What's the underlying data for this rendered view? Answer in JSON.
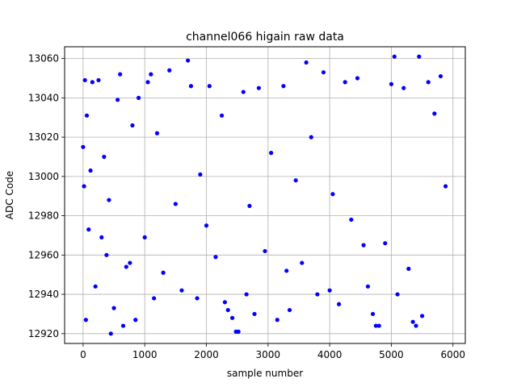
{
  "chart_data": {
    "type": "scatter",
    "title": "channel066 higain raw data",
    "xlabel": "sample number",
    "ylabel": "ADC Code",
    "xlim": [
      -300,
      6200
    ],
    "ylim": [
      12915,
      13066
    ],
    "xticks": [
      0,
      1000,
      2000,
      3000,
      4000,
      5000,
      6000
    ],
    "yticks": [
      12920,
      12940,
      12960,
      12980,
      13000,
      13020,
      13040,
      13060
    ],
    "xtick_labels": [
      "0",
      "1000",
      "2000",
      "3000",
      "4000",
      "5000",
      "6000"
    ],
    "ytick_labels": [
      "12920",
      "12940",
      "12960",
      "12980",
      "13000",
      "13020",
      "13040",
      "13060"
    ],
    "grid": true,
    "marker_color": "#0000ff",
    "series": [
      {
        "values": [
          {
            "x": 0,
            "y": 13015
          },
          {
            "x": 15,
            "y": 12995
          },
          {
            "x": 30,
            "y": 13049
          },
          {
            "x": 45,
            "y": 12927
          },
          {
            "x": 60,
            "y": 13031
          },
          {
            "x": 90,
            "y": 12973
          },
          {
            "x": 120,
            "y": 13003
          },
          {
            "x": 150,
            "y": 13048
          },
          {
            "x": 200,
            "y": 12944
          },
          {
            "x": 250,
            "y": 13049
          },
          {
            "x": 300,
            "y": 12969
          },
          {
            "x": 340,
            "y": 13010
          },
          {
            "x": 380,
            "y": 12960
          },
          {
            "x": 420,
            "y": 12988
          },
          {
            "x": 450,
            "y": 12920
          },
          {
            "x": 500,
            "y": 12933
          },
          {
            "x": 560,
            "y": 13039
          },
          {
            "x": 600,
            "y": 13052
          },
          {
            "x": 650,
            "y": 12924
          },
          {
            "x": 700,
            "y": 12954
          },
          {
            "x": 760,
            "y": 12956
          },
          {
            "x": 800,
            "y": 13026
          },
          {
            "x": 850,
            "y": 12927
          },
          {
            "x": 900,
            "y": 13040
          },
          {
            "x": 1000,
            "y": 12969
          },
          {
            "x": 1050,
            "y": 13048
          },
          {
            "x": 1100,
            "y": 13052
          },
          {
            "x": 1150,
            "y": 12938
          },
          {
            "x": 1200,
            "y": 13022
          },
          {
            "x": 1300,
            "y": 12951
          },
          {
            "x": 1400,
            "y": 13054
          },
          {
            "x": 1500,
            "y": 12986
          },
          {
            "x": 1600,
            "y": 12942
          },
          {
            "x": 1700,
            "y": 13059
          },
          {
            "x": 1750,
            "y": 13046
          },
          {
            "x": 1850,
            "y": 12938
          },
          {
            "x": 1900,
            "y": 13001
          },
          {
            "x": 2000,
            "y": 12975
          },
          {
            "x": 2050,
            "y": 13046
          },
          {
            "x": 2150,
            "y": 12959
          },
          {
            "x": 2250,
            "y": 13031
          },
          {
            "x": 2300,
            "y": 12936
          },
          {
            "x": 2350,
            "y": 12932
          },
          {
            "x": 2420,
            "y": 12928
          },
          {
            "x": 2480,
            "y": 12921
          },
          {
            "x": 2520,
            "y": 12921
          },
          {
            "x": 2600,
            "y": 13043
          },
          {
            "x": 2650,
            "y": 12940
          },
          {
            "x": 2700,
            "y": 12985
          },
          {
            "x": 2780,
            "y": 12930
          },
          {
            "x": 2850,
            "y": 13045
          },
          {
            "x": 2950,
            "y": 12962
          },
          {
            "x": 3050,
            "y": 13012
          },
          {
            "x": 3150,
            "y": 12927
          },
          {
            "x": 3250,
            "y": 13046
          },
          {
            "x": 3300,
            "y": 12952
          },
          {
            "x": 3350,
            "y": 12932
          },
          {
            "x": 3450,
            "y": 12998
          },
          {
            "x": 3550,
            "y": 12956
          },
          {
            "x": 3620,
            "y": 13058
          },
          {
            "x": 3700,
            "y": 13020
          },
          {
            "x": 3800,
            "y": 12940
          },
          {
            "x": 3900,
            "y": 13053
          },
          {
            "x": 4000,
            "y": 12942
          },
          {
            "x": 4050,
            "y": 12991
          },
          {
            "x": 4150,
            "y": 12935
          },
          {
            "x": 4250,
            "y": 13048
          },
          {
            "x": 4350,
            "y": 12978
          },
          {
            "x": 4450,
            "y": 13050
          },
          {
            "x": 4550,
            "y": 12965
          },
          {
            "x": 4620,
            "y": 12944
          },
          {
            "x": 4700,
            "y": 12930
          },
          {
            "x": 4750,
            "y": 12924
          },
          {
            "x": 4800,
            "y": 12924
          },
          {
            "x": 4900,
            "y": 12966
          },
          {
            "x": 5000,
            "y": 13047
          },
          {
            "x": 5050,
            "y": 13061
          },
          {
            "x": 5100,
            "y": 12940
          },
          {
            "x": 5200,
            "y": 13045
          },
          {
            "x": 5280,
            "y": 12953
          },
          {
            "x": 5350,
            "y": 12926
          },
          {
            "x": 5400,
            "y": 12924
          },
          {
            "x": 5450,
            "y": 13061
          },
          {
            "x": 5500,
            "y": 12929
          },
          {
            "x": 5600,
            "y": 13048
          },
          {
            "x": 5700,
            "y": 13032
          },
          {
            "x": 5800,
            "y": 13051
          },
          {
            "x": 5880,
            "y": 12995
          }
        ]
      }
    ]
  }
}
